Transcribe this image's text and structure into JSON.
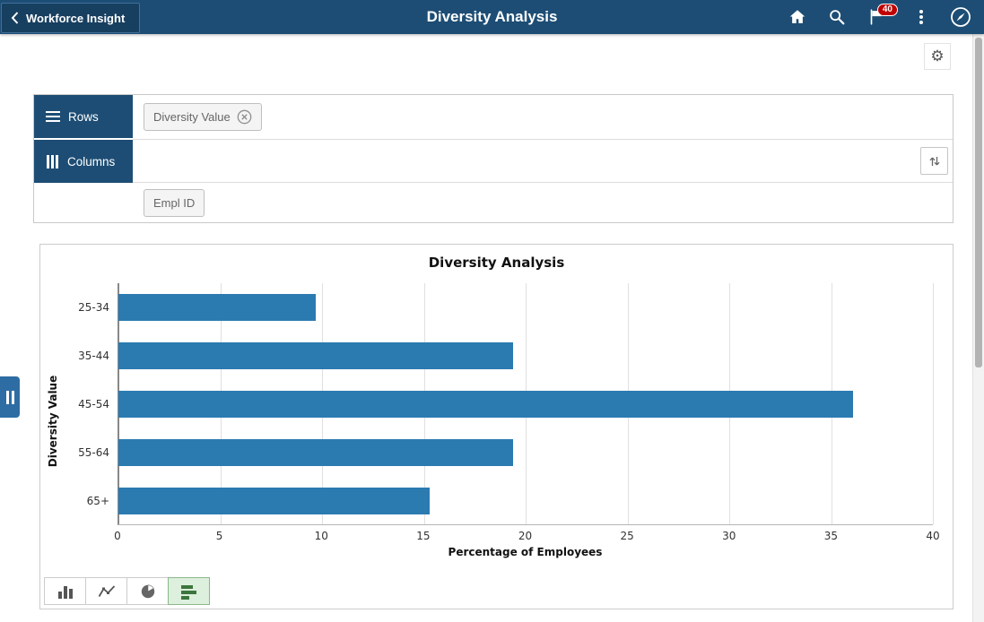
{
  "header": {
    "back_label": "Workforce Insight",
    "title": "Diversity Analysis",
    "notification_count": "40"
  },
  "icons": {
    "back": "chevron-left",
    "home": "house",
    "search": "magnifier",
    "notifications": "flag",
    "actions": "kebab-menu",
    "navbar": "compass",
    "settings": "gear",
    "sort": "up-down-arrows",
    "remove_chip": "circle-x",
    "rows": "hamburger-lines",
    "columns": "vertical-bars",
    "side_expand": "pause-handle"
  },
  "pivot": {
    "rows_label": "Rows",
    "columns_label": "Columns",
    "row_chips": [
      {
        "label": "Diversity Value",
        "removable": true
      }
    ],
    "column_chips": [
      {
        "label": "Empl ID",
        "removable": false
      }
    ]
  },
  "chart_data": {
    "type": "bar",
    "orientation": "horizontal",
    "title": "Diversity Analysis",
    "categories": [
      "25-34",
      "35-44",
      "45-54",
      "55-64",
      "65+"
    ],
    "values": [
      9.7,
      19.4,
      36.1,
      19.4,
      15.3
    ],
    "xlabel": "Percentage of Employees",
    "ylabel": "Diversity Value",
    "xlim": [
      0,
      40
    ],
    "xticks": [
      0,
      5,
      10,
      15,
      20,
      25,
      30,
      35,
      40
    ],
    "grid": true,
    "legend": "none",
    "bar_color": "#2b7bb1"
  },
  "chart_toolbar": {
    "types": [
      {
        "name": "vertical-bar",
        "selected": false
      },
      {
        "name": "line",
        "selected": false
      },
      {
        "name": "pie",
        "selected": false
      },
      {
        "name": "horizontal-bar",
        "selected": true
      }
    ]
  },
  "colors": {
    "header_bg": "#1d4d74",
    "tab_bg": "#1d4d74",
    "bar": "#2b7bb1",
    "selected_green_bg": "#ddefdd",
    "badge_red": "#c00000",
    "handle_blue": "#2e6da4"
  }
}
